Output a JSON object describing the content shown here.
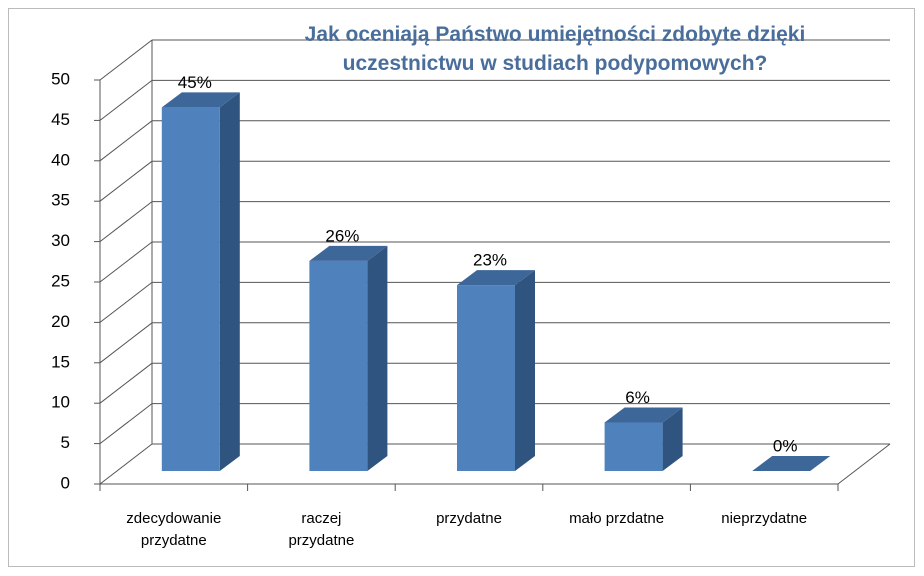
{
  "chart_data": {
    "type": "bar3d",
    "title": "Jak oceniają Państwo umiejętności zdobyte dzięki uczestnictwu w studiach podypomowych?",
    "categories": [
      "zdecydowanie przydatne",
      "raczej przydatne",
      "przydatne",
      "mało przdatne",
      "nieprzydatne"
    ],
    "values": [
      45,
      26,
      23,
      6,
      0
    ],
    "value_labels": [
      "45%",
      "26%",
      "23%",
      "6%",
      "0%"
    ],
    "color": "#4f81bd",
    "ylim": [
      0,
      50
    ],
    "yticks": [
      0,
      5,
      10,
      15,
      20,
      25,
      30,
      35,
      40,
      45,
      50
    ],
    "grid": true
  }
}
